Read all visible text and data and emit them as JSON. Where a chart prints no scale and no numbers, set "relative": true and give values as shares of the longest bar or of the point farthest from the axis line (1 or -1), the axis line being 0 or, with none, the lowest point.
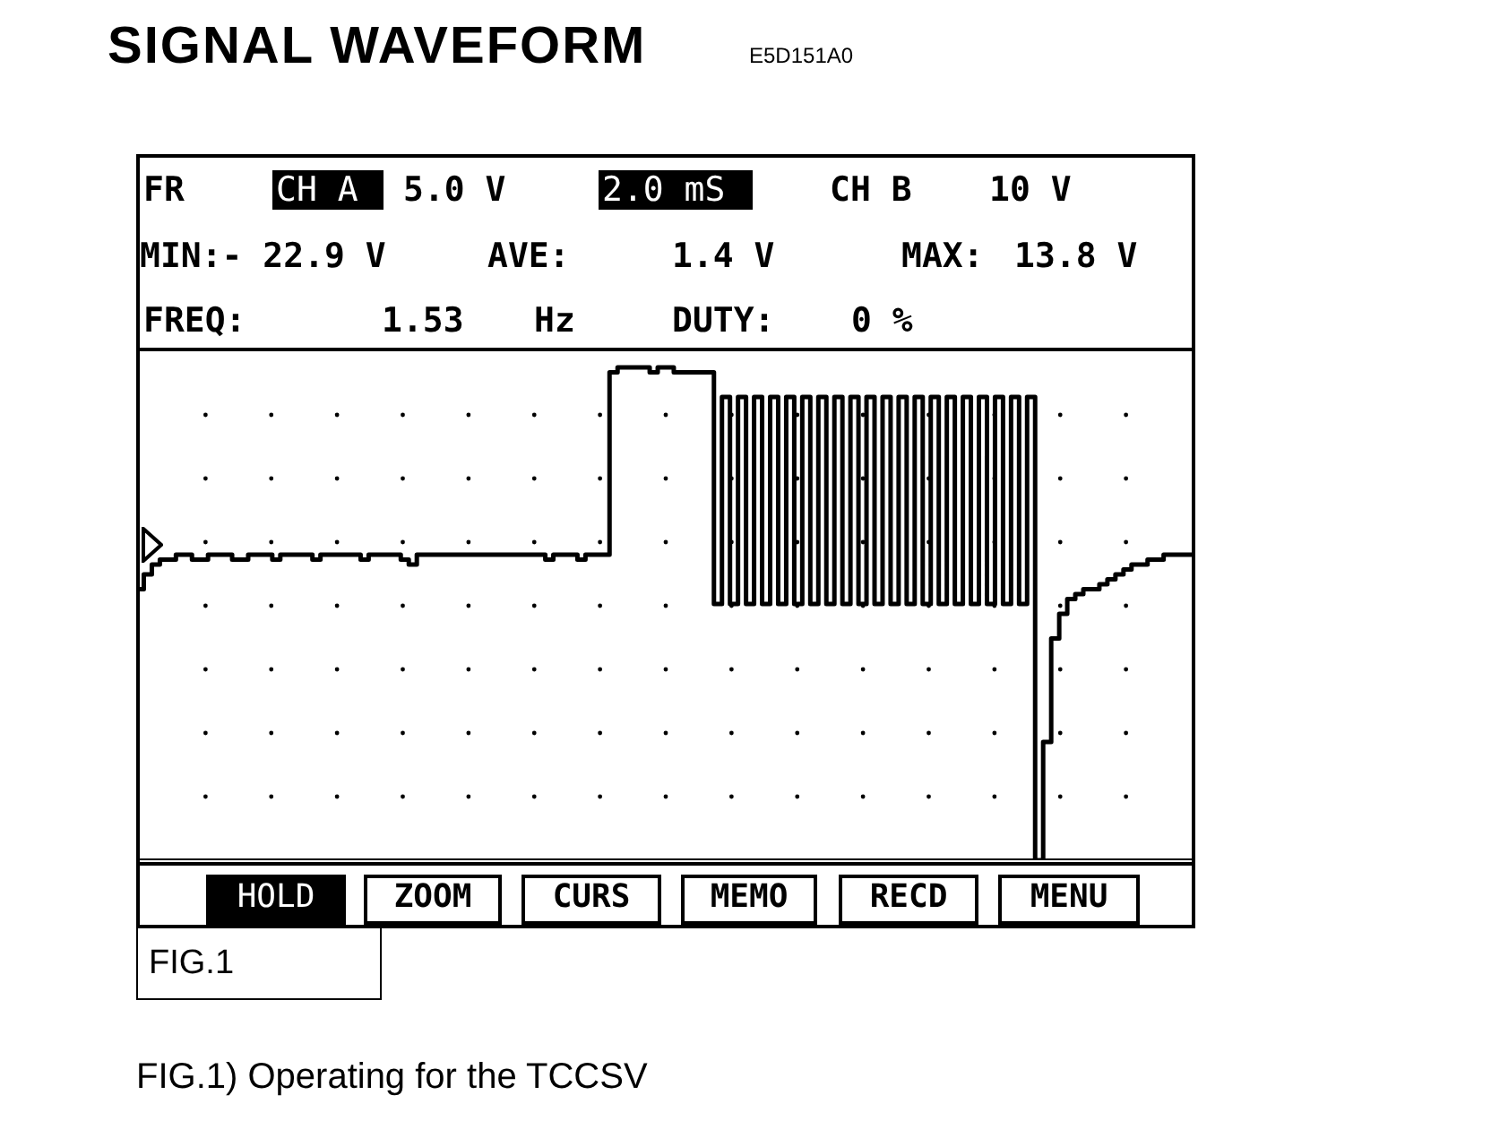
{
  "chart_data": {
    "type": "step",
    "title": "SIGNAL WAVEFORM",
    "subtitle": "E5D151A0",
    "relative": true,
    "legend": false,
    "categories": [
      null,
      null,
      null,
      null,
      null,
      null,
      null,
      null,
      null,
      null,
      null,
      null,
      null,
      null,
      null,
      null,
      null,
      null,
      null,
      null,
      null,
      null,
      null,
      null,
      null,
      null,
      null,
      null,
      null,
      null,
      null,
      null,
      null,
      null,
      null,
      null,
      null,
      null,
      null,
      null,
      null,
      null,
      null,
      null,
      null,
      null,
      null,
      null,
      null,
      null,
      null,
      null,
      null,
      null,
      null,
      null,
      null,
      null,
      null,
      null,
      null,
      null,
      null,
      null,
      null,
      null,
      null,
      null,
      null,
      null,
      null,
      null,
      null,
      null,
      null,
      null,
      null,
      null,
      null,
      null,
      null,
      null,
      null,
      null,
      null,
      null,
      null,
      null,
      null,
      null,
      null,
      null,
      null,
      null,
      null,
      null,
      null,
      null,
      null,
      null,
      null,
      null,
      null,
      null,
      null,
      null,
      null,
      null,
      null,
      null,
      null,
      null,
      null,
      null,
      null,
      null,
      null,
      null,
      null,
      null,
      null,
      null,
      null,
      null,
      null,
      null,
      null,
      null,
      null,
      null,
      null,
      null
    ],
    "series": [
      {
        "color": "#000000",
        "values": [
          0.55,
          0.58,
          0.6,
          0.61,
          0.61,
          0.62,
          0.62,
          0.61,
          0.61,
          0.62,
          0.62,
          0.62,
          0.61,
          0.61,
          0.62,
          0.62,
          0.62,
          0.61,
          0.62,
          0.62,
          0.62,
          0.62,
          0.61,
          0.62,
          0.62,
          0.62,
          0.62,
          0.62,
          0.61,
          0.62,
          0.62,
          0.62,
          0.62,
          0.61,
          0.6,
          0.62,
          0.62,
          0.62,
          0.62,
          0.62,
          0.62,
          0.62,
          0.62,
          0.62,
          0.62,
          0.62,
          0.62,
          0.62,
          0.62,
          0.62,
          0.62,
          0.61,
          0.62,
          0.62,
          0.62,
          0.61,
          0.62,
          0.62,
          0.62,
          0.99,
          1,
          1,
          1,
          1,
          0.99,
          1,
          1,
          0.99,
          0.99,
          0.99,
          0.99,
          0.99,
          0.52,
          0.94,
          0.52,
          0.94,
          0.52,
          0.94,
          0.52,
          0.94,
          0.52,
          0.94,
          0.52,
          0.94,
          0.52,
          0.94,
          0.52,
          0.94,
          0.52,
          0.94,
          0.52,
          0.94,
          0.52,
          0.94,
          0.52,
          0.94,
          0.52,
          0.94,
          0.52,
          0.94,
          0.52,
          0.94,
          0.52,
          0.94,
          0.52,
          0.94,
          0.52,
          0.94,
          0.52,
          0.94,
          0.52,
          0.94,
          0,
          0.24,
          0.45,
          0.5,
          0.53,
          0.54,
          0.55,
          0.55,
          0.56,
          0.57,
          0.58,
          0.59,
          0.6,
          0.6,
          0.61,
          0.61,
          0.62,
          0.62,
          0.62,
          0.62
        ]
      }
    ],
    "annotations": [
      "FR",
      "CH A",
      "5.0 V",
      "2.0 mS",
      "CH B",
      "10 V",
      "MIN:- 22.9 V",
      "AVE:",
      "1.4 V",
      "MAX:",
      "13.8 V",
      "FREQ:",
      "1.53",
      "Hz",
      "DUTY:",
      "0 %",
      "HOLD",
      "ZOOM",
      "CURS",
      "MEMO",
      "RECD",
      "MENU",
      "FIG.1",
      "FIG.1) Operating for the TCCSV"
    ]
  }
}
